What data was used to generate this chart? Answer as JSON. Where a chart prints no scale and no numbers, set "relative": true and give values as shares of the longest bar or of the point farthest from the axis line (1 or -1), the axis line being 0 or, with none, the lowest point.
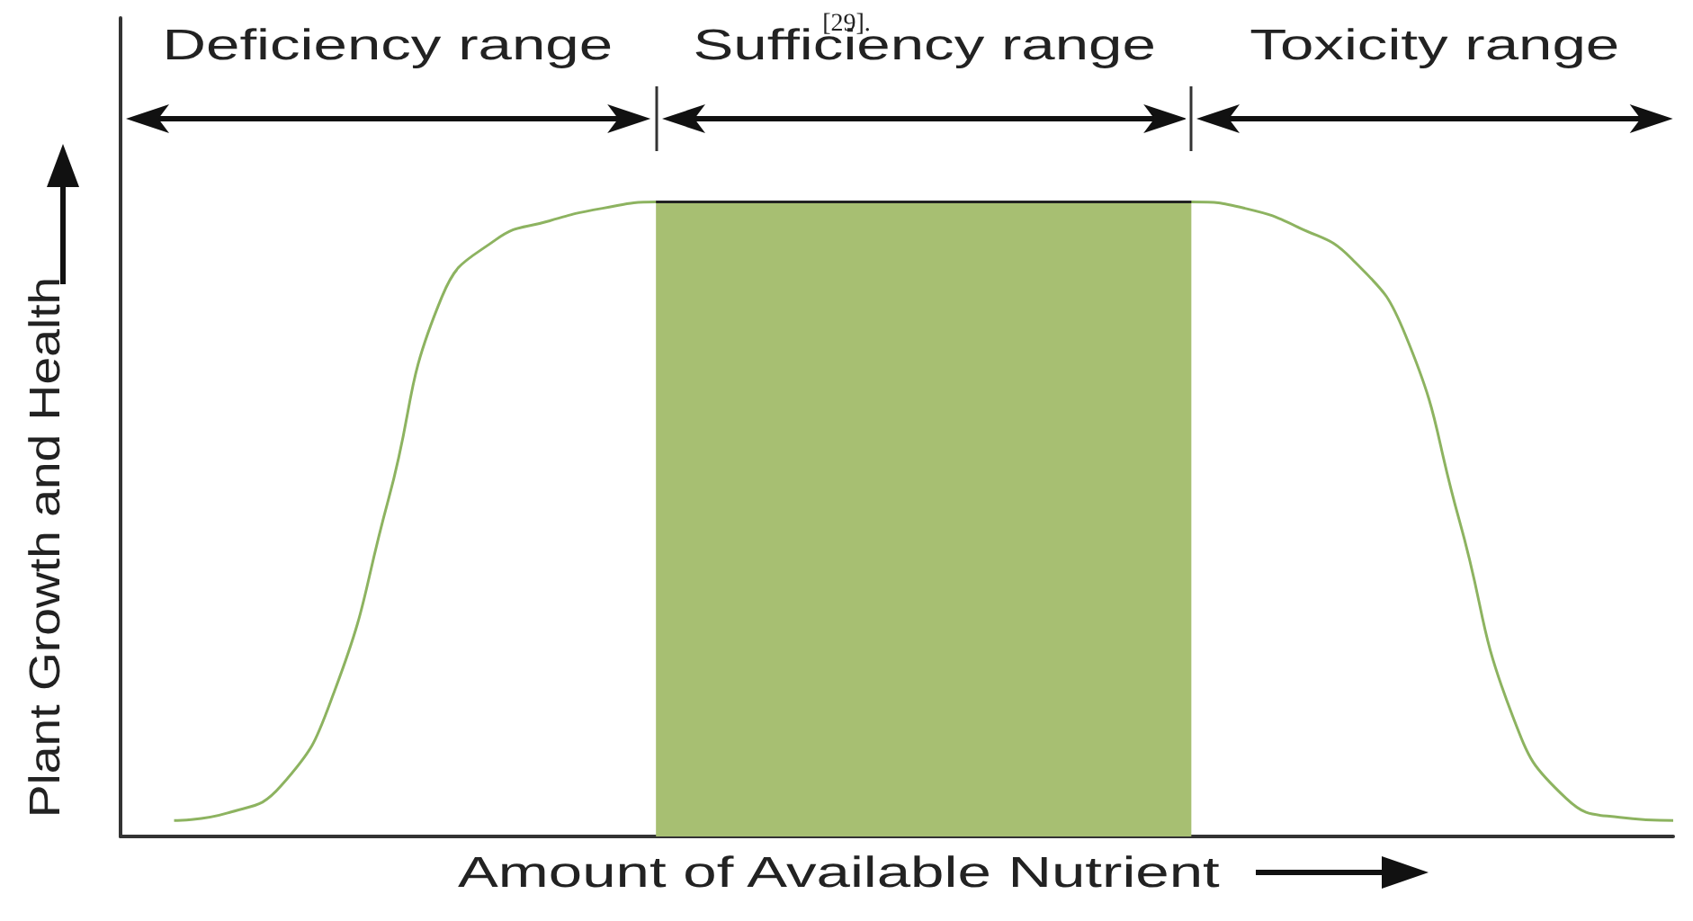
{
  "chart_data": {
    "type": "line",
    "relative": true,
    "xlabel": "Amount of Available Nutrient",
    "ylabel": "Plant Growth and Health",
    "annotations": [
      "[29].",
      "Deficiency range",
      "Sufficiency range",
      "Toxicity range"
    ],
    "categories": [
      null,
      null,
      null,
      null,
      null,
      null,
      null,
      null,
      null,
      null,
      null,
      null,
      null,
      null,
      null,
      null,
      null,
      null,
      null,
      null,
      null,
      null,
      null,
      null,
      null,
      null,
      null,
      null,
      null,
      null
    ],
    "series": [
      {
        "type": "line",
        "color": "#8db360",
        "values": [
          null,
          0.025,
          0.037,
          0.08,
          0.23,
          0.53,
          0.85,
          0.94,
          0.97,
          0.99,
          1,
          1,
          1,
          1,
          1,
          1,
          1,
          1,
          1,
          1,
          1,
          0.99,
          0.96,
          0.91,
          0.79,
          0.5,
          0.19,
          0.06,
          0.03,
          0.025
        ]
      },
      {
        "type": "area",
        "color": "#a7bf72",
        "values": [
          null,
          null,
          null,
          null,
          null,
          null,
          null,
          null,
          null,
          null,
          1,
          1,
          1,
          1,
          1,
          1,
          1,
          1,
          1,
          1,
          1,
          null,
          null,
          null,
          null,
          null,
          null,
          null,
          null,
          null
        ]
      }
    ],
    "grid": false,
    "marker": "none",
    "line_style": "solid"
  }
}
